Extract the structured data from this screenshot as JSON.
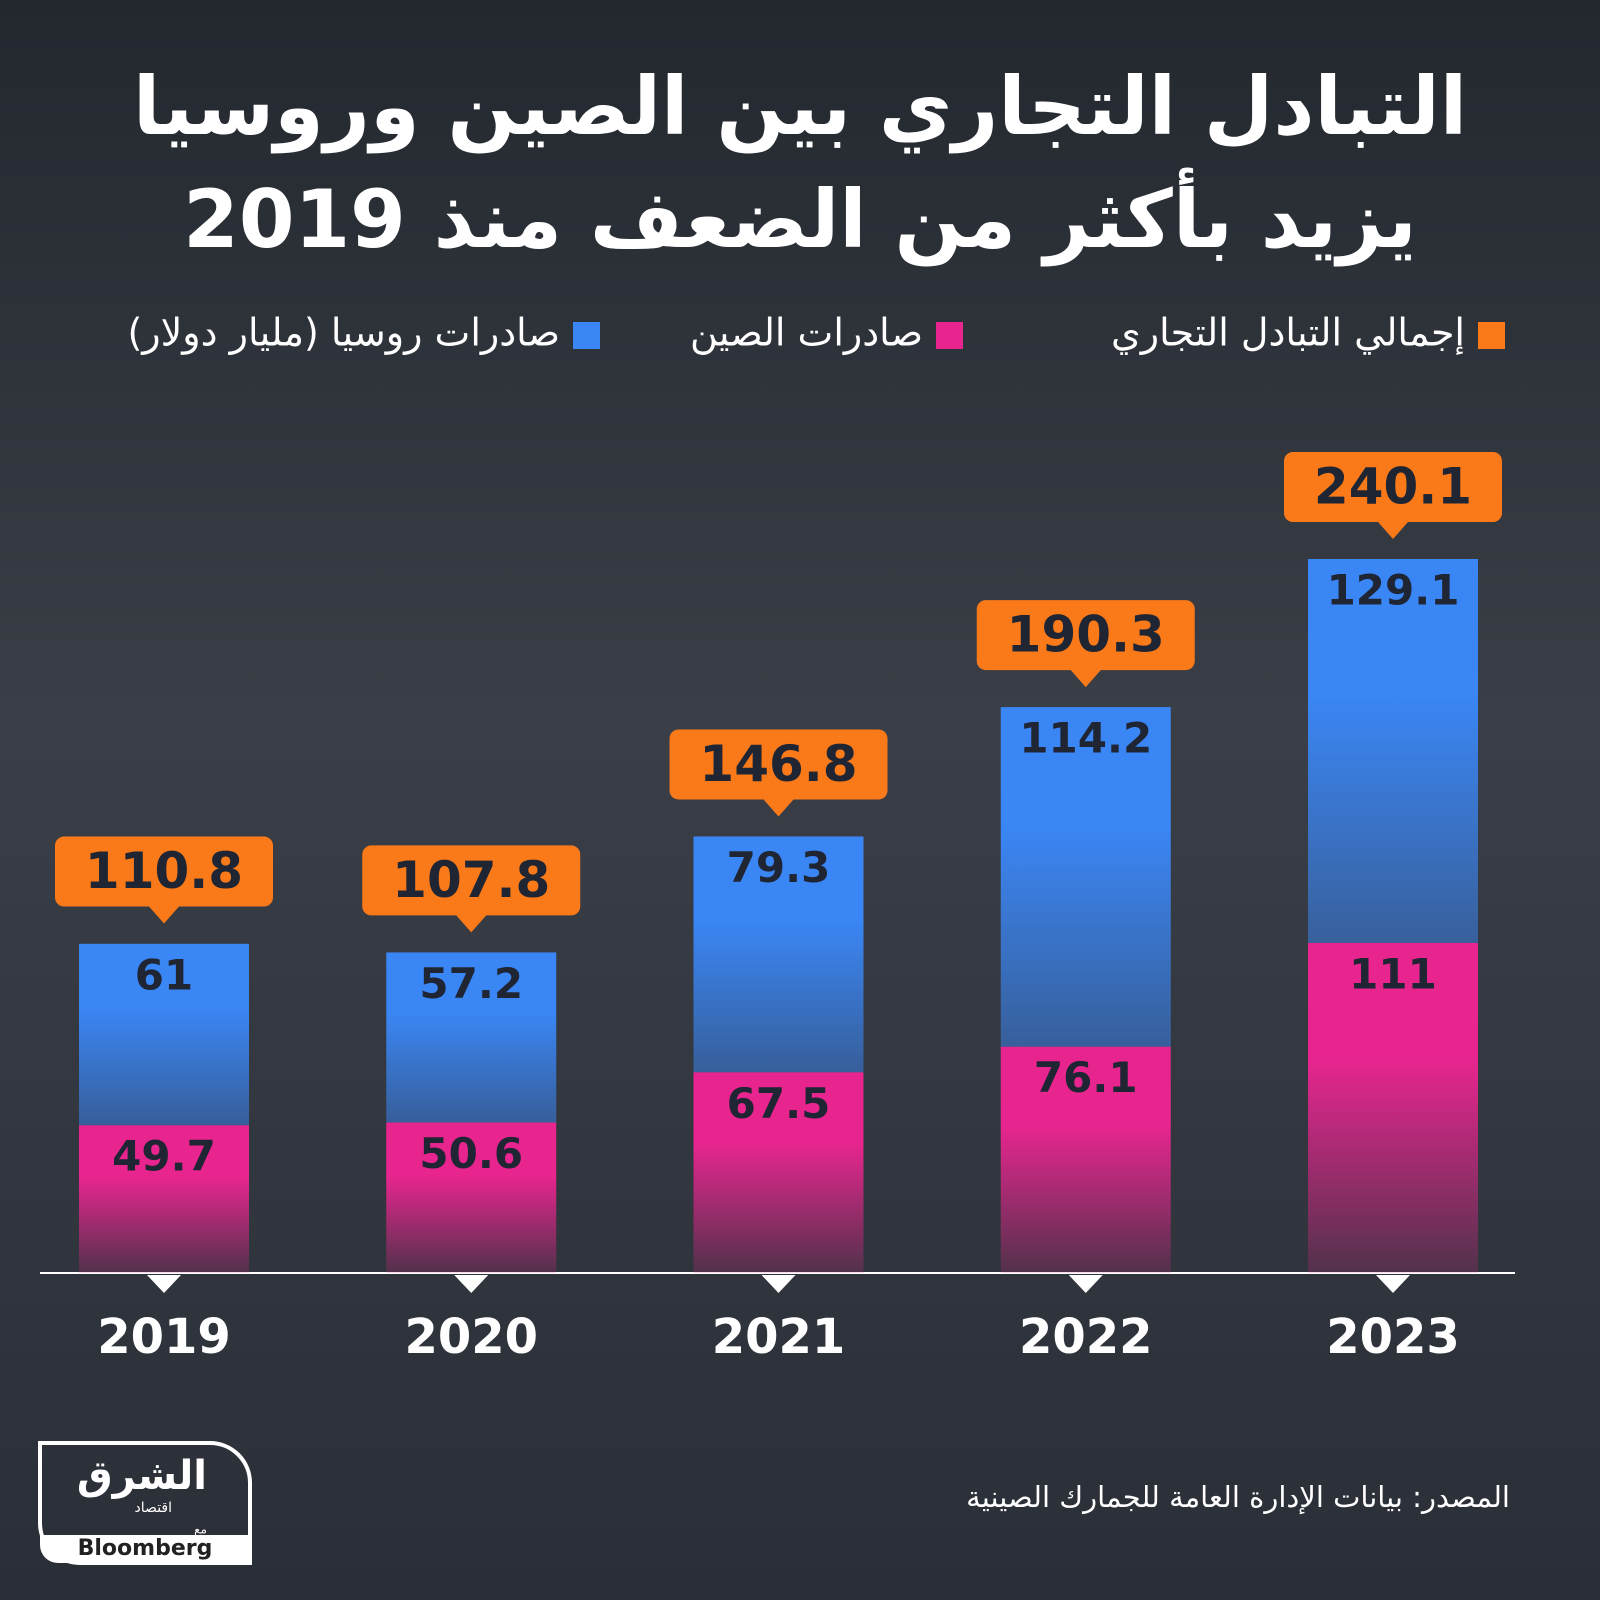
{
  "chart_data": {
    "type": "stacked_bar",
    "title": [
      "التبادل التجاري بين الصين وروسيا",
      "يزيد بأكثر من الضعف منذ 2019"
    ],
    "categories": [
      "2019",
      "2020",
      "2021",
      "2022",
      "2023"
    ],
    "series": [
      {
        "name": "صادرات الصين",
        "color": "#e8258f",
        "values": [
          49.7,
          50.6,
          67.5,
          76.1,
          111
        ]
      },
      {
        "name": "صادرات روسيا (مليار دولار)",
        "color": "#3a86f5",
        "values": [
          61,
          57.2,
          79.3,
          114.2,
          129.1
        ]
      }
    ],
    "total": {
      "name": "إجمالي التبادل التجاري",
      "color": "#fa7a1a",
      "values": [
        110.8,
        107.8,
        146.8,
        190.3,
        240.1
      ]
    },
    "source": "المصدر: بيانات الإدارة العامة للجمارك الصينية",
    "logo": {
      "brand": "الشرق",
      "section": "اقتصاد",
      "with": "مع",
      "partner": "Bloomberg"
    }
  }
}
